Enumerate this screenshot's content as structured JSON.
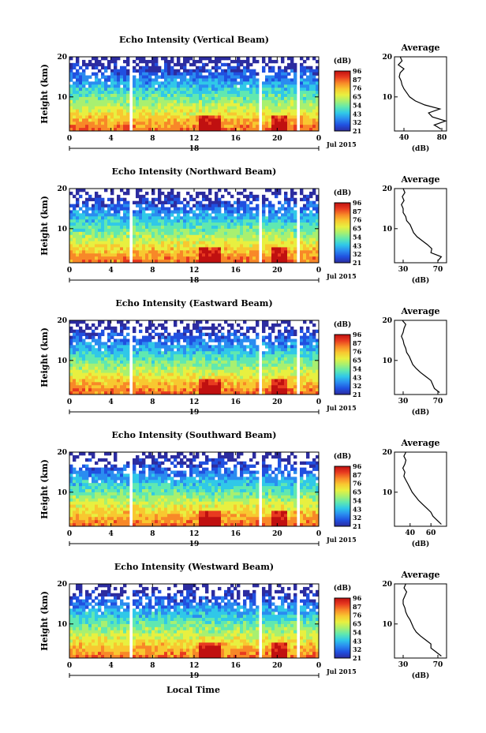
{
  "figure": {
    "xlabel": "Local Time",
    "month_label": "Jul 2015",
    "colorbar_unit": "(dB)",
    "colorbar_ticks": [
      "96",
      "87",
      "76",
      "65",
      "54",
      "43",
      "32",
      "21"
    ],
    "colormap": [
      "#2c2ca0",
      "#2050e0",
      "#2a8cf0",
      "#30c8e8",
      "#60e8b0",
      "#a8f070",
      "#e8f040",
      "#f8c830",
      "#f88828",
      "#e83a20",
      "#c01010"
    ]
  },
  "chart_data": [
    {
      "type": "heatmap",
      "title": "Echo Intensity (Vertical Beam)",
      "ylabel": "Height (km)",
      "x_ticks": [
        "0",
        "4",
        "8",
        "12",
        "16",
        "20",
        "0"
      ],
      "y_ticks": [
        "20",
        "10"
      ],
      "date_label": "18",
      "xlim": [
        0,
        24
      ],
      "ylim": [
        1.5,
        20
      ],
      "data_gaps_hours": [
        [
          5.7,
          6.0
        ],
        [
          18.2,
          18.4
        ],
        [
          21.9,
          22.2
        ]
      ],
      "avg_profile": {
        "title": "Average",
        "xlabel": "(dB)",
        "x_ticks": [
          "40",
          "80"
        ],
        "y_ticks": [
          "20",
          "10"
        ],
        "xlim": [
          30,
          85
        ],
        "height_km": [
          2,
          3,
          4,
          5,
          6,
          7,
          8,
          9,
          10,
          11,
          12,
          13,
          14,
          15,
          16,
          17,
          18,
          19,
          20
        ],
        "intensity_db": [
          79,
          72,
          84,
          70,
          66,
          78,
          62,
          52,
          46,
          43,
          40,
          38,
          37,
          35,
          36,
          40,
          34,
          38,
          36
        ]
      }
    },
    {
      "type": "heatmap",
      "title": "Echo Intensity (Northward Beam)",
      "ylabel": "Height (km)",
      "x_ticks": [
        "0",
        "4",
        "8",
        "12",
        "16",
        "20",
        "0"
      ],
      "y_ticks": [
        "20",
        "10"
      ],
      "date_label": "18",
      "xlim": [
        0,
        24
      ],
      "ylim": [
        1.5,
        20
      ],
      "data_gaps_hours": [
        [
          5.7,
          6.0
        ],
        [
          18.2,
          18.4
        ],
        [
          21.9,
          22.2
        ]
      ],
      "avg_profile": {
        "title": "Average",
        "xlabel": "(dB)",
        "x_ticks": [
          "30",
          "70"
        ],
        "y_ticks": [
          "20",
          "10"
        ],
        "xlim": [
          20,
          80
        ],
        "height_km": [
          2,
          3,
          4,
          5,
          6,
          7,
          8,
          9,
          10,
          11,
          12,
          13,
          14,
          15,
          16,
          17,
          18,
          19,
          20
        ],
        "intensity_db": [
          70,
          74,
          62,
          63,
          58,
          52,
          46,
          42,
          40,
          38,
          34,
          33,
          30,
          30,
          28,
          31,
          29,
          32,
          30
        ]
      }
    },
    {
      "type": "heatmap",
      "title": "Echo Intensity (Eastward Beam)",
      "ylabel": "Height (km)",
      "x_ticks": [
        "0",
        "4",
        "8",
        "12",
        "16",
        "20",
        "0"
      ],
      "y_ticks": [
        "20",
        "10"
      ],
      "date_label": "19",
      "xlim": [
        0,
        24
      ],
      "ylim": [
        1.5,
        20
      ],
      "data_gaps_hours": [
        [
          5.7,
          6.0
        ],
        [
          18.2,
          18.4
        ],
        [
          21.9,
          22.2
        ]
      ],
      "avg_profile": {
        "title": "Average",
        "xlabel": "(dB)",
        "x_ticks": [
          "30",
          "70"
        ],
        "y_ticks": [
          "20",
          "10"
        ],
        "xlim": [
          20,
          80
        ],
        "height_km": [
          2,
          3,
          4,
          5,
          6,
          7,
          8,
          9,
          10,
          11,
          12,
          13,
          14,
          15,
          16,
          17,
          18,
          19,
          20
        ],
        "intensity_db": [
          72,
          66,
          64,
          62,
          56,
          50,
          45,
          41,
          39,
          37,
          34,
          33,
          31,
          30,
          28,
          30,
          31,
          33,
          29
        ]
      }
    },
    {
      "type": "heatmap",
      "title": "Echo Intensity (Southward Beam)",
      "ylabel": "Height (km)",
      "x_ticks": [
        "0",
        "4",
        "8",
        "12",
        "16",
        "20",
        "0"
      ],
      "y_ticks": [
        "20",
        "10"
      ],
      "date_label": "19",
      "xlim": [
        0,
        24
      ],
      "ylim": [
        1.5,
        20
      ],
      "data_gaps_hours": [
        [
          5.7,
          6.0
        ],
        [
          18.2,
          18.4
        ],
        [
          21.9,
          22.2
        ]
      ],
      "avg_profile": {
        "title": "Average",
        "xlabel": "(dB)",
        "x_ticks": [
          "40",
          "60"
        ],
        "y_ticks": [
          "20",
          "10"
        ],
        "xlim": [
          25,
          75
        ],
        "height_km": [
          2,
          3,
          4,
          5,
          6,
          7,
          8,
          9,
          10,
          11,
          12,
          13,
          14,
          15,
          16,
          17,
          18,
          19,
          20
        ],
        "intensity_db": [
          70,
          66,
          62,
          60,
          56,
          52,
          48,
          45,
          42,
          40,
          38,
          36,
          34,
          35,
          33,
          35,
          36,
          34,
          36
        ]
      }
    },
    {
      "type": "heatmap",
      "title": "Echo Intensity (Westward Beam)",
      "ylabel": "Height (km)",
      "x_ticks": [
        "0",
        "4",
        "8",
        "12",
        "16",
        "20",
        "0"
      ],
      "y_ticks": [
        "20",
        "10"
      ],
      "date_label": "19",
      "xlim": [
        0,
        24
      ],
      "ylim": [
        1.5,
        20
      ],
      "data_gaps_hours": [
        [
          5.7,
          6.0
        ],
        [
          18.2,
          18.4
        ],
        [
          21.9,
          22.2
        ]
      ],
      "avg_profile": {
        "title": "Average",
        "xlabel": "(dB)",
        "x_ticks": [
          "30",
          "70"
        ],
        "y_ticks": [
          "20",
          "10"
        ],
        "xlim": [
          20,
          80
        ],
        "height_km": [
          2,
          3,
          4,
          5,
          6,
          7,
          8,
          9,
          10,
          11,
          12,
          13,
          14,
          15,
          16,
          17,
          18,
          19,
          20
        ],
        "intensity_db": [
          74,
          68,
          62,
          62,
          56,
          50,
          45,
          42,
          40,
          38,
          35,
          33,
          32,
          30,
          30,
          32,
          34,
          31,
          33
        ]
      }
    }
  ]
}
